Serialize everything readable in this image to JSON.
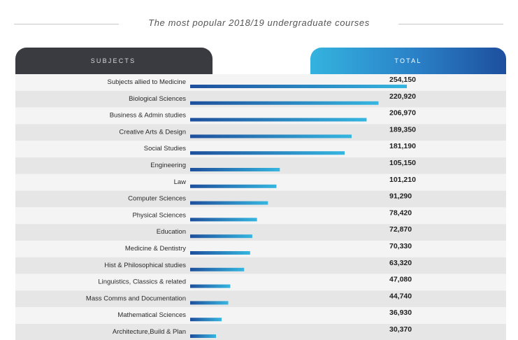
{
  "title": "The most popular 2018/19 undergraduate courses",
  "headers": {
    "subjects": "SUBJECTS",
    "total": "TOTAL"
  },
  "colors": {
    "bar_dark": "#1e4f9c",
    "bar_light": "#35b6e0",
    "row_light": "#f4f4f4",
    "row_dark": "#e6e6e6",
    "header_dark": "#3a3b41"
  },
  "chart_data": {
    "type": "bar",
    "orientation": "horizontal",
    "title": "The most popular 2018/19 undergraduate courses",
    "xlim": [
      0,
      254150
    ],
    "categories": [
      "Subjects allied to Medicine",
      "Biological Sciences",
      "Business & Admin studies",
      "Creative Arts & Design",
      "Social Studies",
      "Engineering",
      "Law",
      "Computer Sciences",
      "Physical Sciences",
      "Education",
      "Medicine & Dentistry",
      "Hist & Philosophical studies",
      "Linguistics, Classics & related",
      "Mass Comms and Documentation",
      "Mathematical Sciences",
      "Architecture,Build & Plan"
    ],
    "values": [
      254150,
      220920,
      206970,
      189350,
      181190,
      105150,
      101210,
      91290,
      78420,
      72870,
      70330,
      63320,
      47080,
      44740,
      36930,
      30370
    ],
    "value_labels": [
      "254,150",
      "220,920",
      "206,970",
      "189,350",
      "181,190",
      "105,150",
      "101,210",
      "91,290",
      "78,420",
      "72,870",
      "70,330",
      "63,320",
      "47,080",
      "44,740",
      "36,930",
      "30,370"
    ]
  }
}
